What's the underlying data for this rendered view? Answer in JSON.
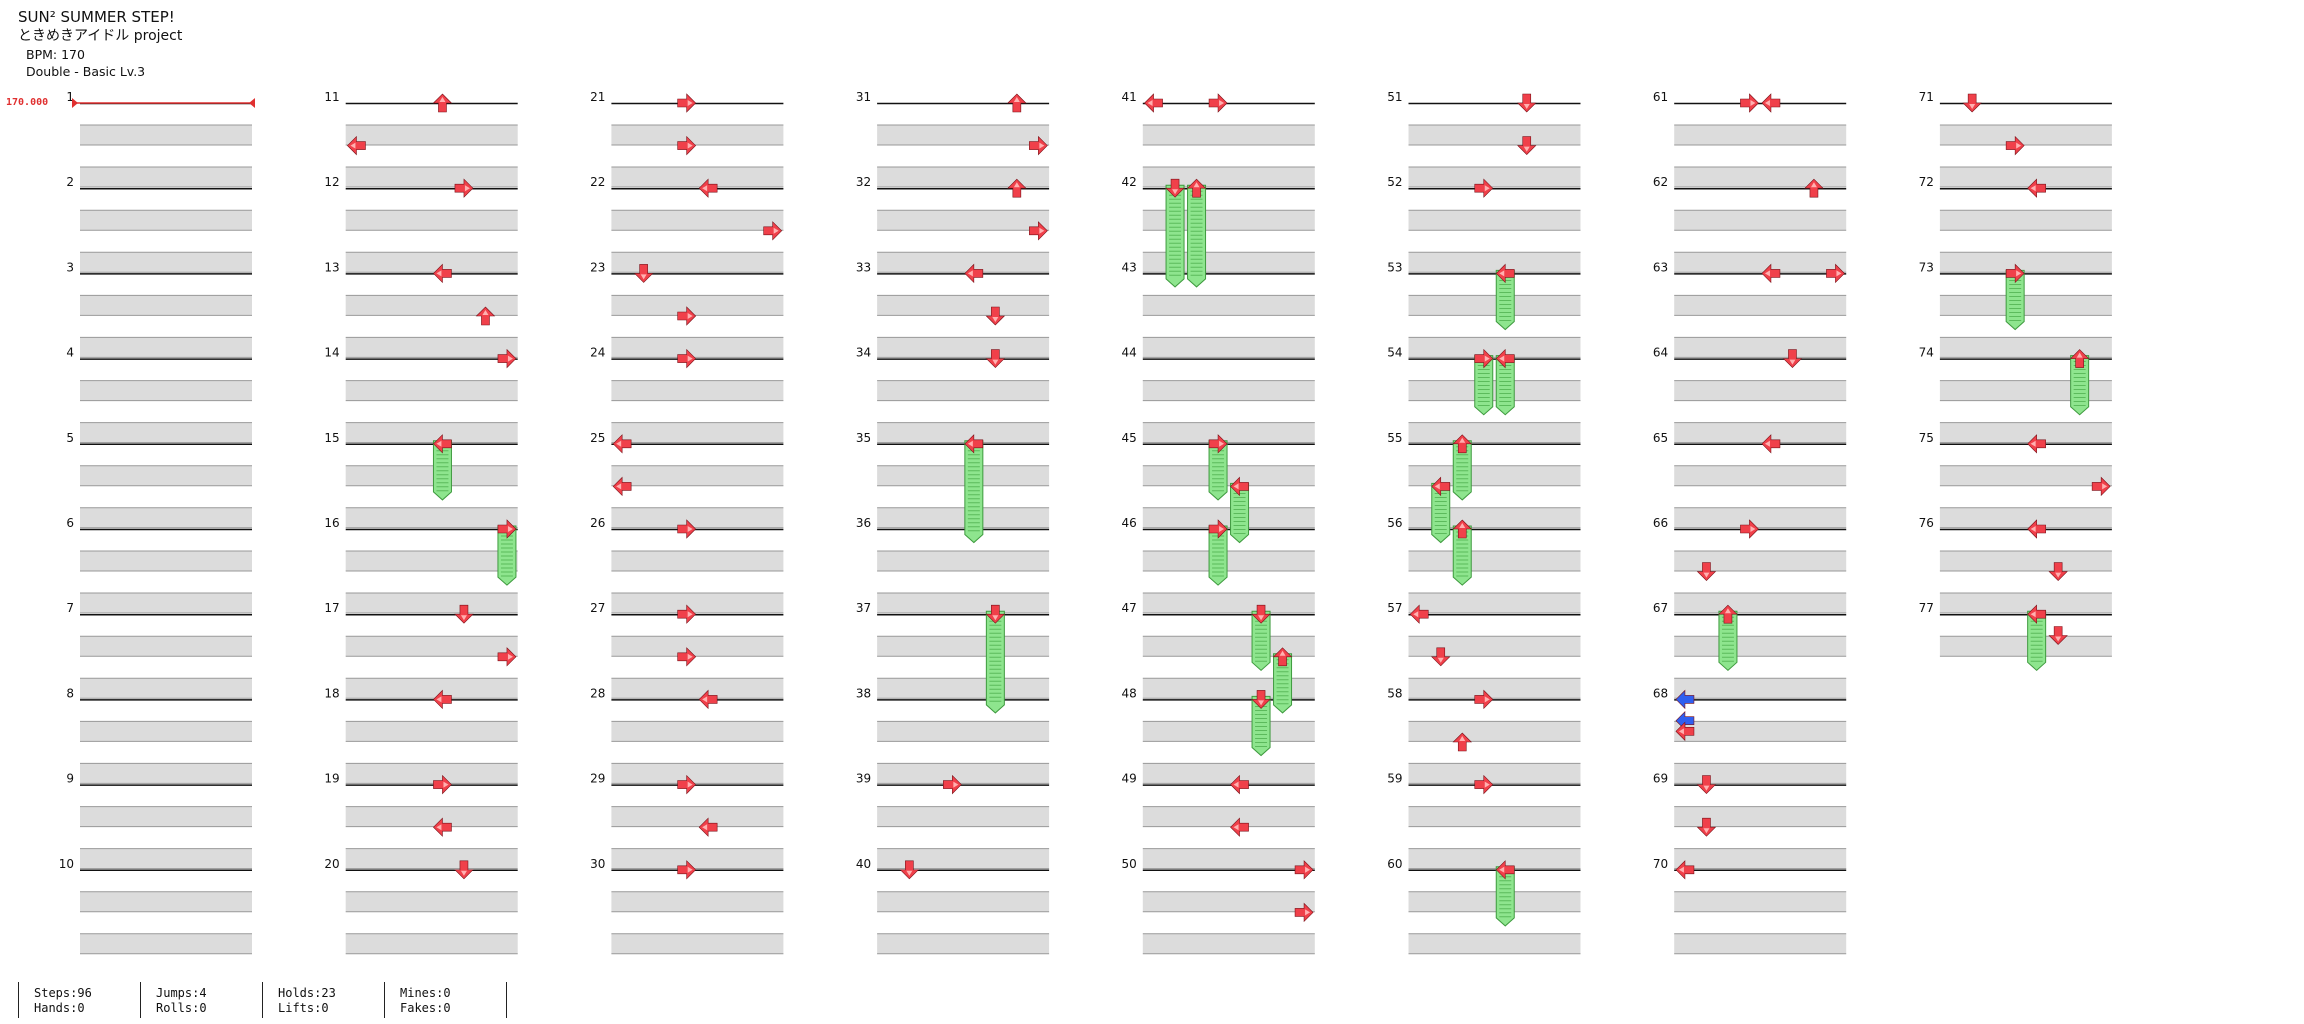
{
  "song": {
    "title": "SUN² SUMMER STEP!",
    "artist": "ときめきアイドル project",
    "bpm": "BPM: 170",
    "chart": "Double - Basic  Lv.3"
  },
  "bpm_marker": "170.000",
  "colors": {
    "arrow": "#f0404a",
    "arrow_alt": "#2f5ff0",
    "hold": "#8ee58e",
    "stripe": "#dcdcdc",
    "line": "#111111",
    "bpm": "#e03030"
  },
  "measures": [
    "1",
    "2",
    "3",
    "4",
    "5",
    "6",
    "7",
    "8",
    "9",
    "10",
    "11",
    "12",
    "13",
    "14",
    "15",
    "16",
    "17",
    "18",
    "19",
    "20",
    "21",
    "22",
    "23",
    "24",
    "25",
    "26",
    "27",
    "28",
    "29",
    "30",
    "31",
    "32",
    "33",
    "34",
    "35",
    "36",
    "37",
    "38",
    "39",
    "40",
    "41",
    "42",
    "43",
    "44",
    "45",
    "46",
    "47",
    "48",
    "49",
    "50",
    "51",
    "52",
    "53",
    "54",
    "55",
    "56",
    "57",
    "58",
    "59",
    "60",
    "61",
    "62",
    "63",
    "64",
    "65",
    "66",
    "67",
    "68",
    "69",
    "70",
    "71",
    "72",
    "73",
    "74",
    "75",
    "76",
    "77"
  ],
  "notes": [
    [
      10,
      0.0,
      4,
      "U"
    ],
    [
      10,
      0.5,
      0,
      "L"
    ],
    [
      11,
      0.0,
      5,
      "R"
    ],
    [
      12,
      0.0,
      4,
      "L"
    ],
    [
      12,
      0.5,
      6,
      "U"
    ],
    [
      13,
      0.0,
      7,
      "R"
    ],
    [
      14,
      0.0,
      4,
      "L",
      0.6
    ],
    [
      15,
      0.0,
      7,
      "R",
      0.6
    ],
    [
      16,
      0.0,
      5,
      "D"
    ],
    [
      16,
      0.5,
      7,
      "R"
    ],
    [
      17,
      0.0,
      4,
      "L"
    ],
    [
      18,
      0.0,
      4,
      "R"
    ],
    [
      18,
      0.5,
      4,
      "L"
    ],
    [
      19,
      0.0,
      5,
      "D"
    ],
    [
      20,
      0.0,
      3,
      "R"
    ],
    [
      20,
      0.5,
      3,
      "R"
    ],
    [
      21,
      0.0,
      4,
      "L"
    ],
    [
      21,
      0.5,
      7,
      "R"
    ],
    [
      22,
      0.0,
      1,
      "D"
    ],
    [
      22,
      0.5,
      3,
      "R"
    ],
    [
      23,
      0.0,
      3,
      "R"
    ],
    [
      24,
      0.0,
      0,
      "L"
    ],
    [
      24,
      0.5,
      0,
      "L"
    ],
    [
      25,
      0.0,
      3,
      "R"
    ],
    [
      26,
      0.0,
      3,
      "R"
    ],
    [
      26,
      0.5,
      3,
      "R"
    ],
    [
      27,
      0.0,
      4,
      "L"
    ],
    [
      28,
      0.0,
      3,
      "R"
    ],
    [
      28,
      0.5,
      4,
      "L"
    ],
    [
      29,
      0.0,
      3,
      "R"
    ],
    [
      30,
      0.0,
      6,
      "U"
    ],
    [
      30,
      0.5,
      7,
      "R"
    ],
    [
      31,
      0.0,
      6,
      "U"
    ],
    [
      31,
      0.5,
      7,
      "R"
    ],
    [
      32,
      0.0,
      4,
      "L"
    ],
    [
      32,
      0.5,
      5,
      "D"
    ],
    [
      33,
      0.0,
      5,
      "D"
    ],
    [
      34,
      0.0,
      4,
      "L",
      1.1
    ],
    [
      36,
      0.0,
      5,
      "D",
      1.1
    ],
    [
      38,
      0.0,
      3,
      "R"
    ],
    [
      39,
      0.0,
      1,
      "D"
    ],
    [
      40,
      0.0,
      0,
      "L"
    ],
    [
      40,
      0.0,
      3,
      "R"
    ],
    [
      41,
      0.0,
      1,
      "D",
      1.1
    ],
    [
      41,
      0.0,
      2,
      "U",
      1.1
    ],
    [
      44,
      0.0,
      3,
      "R",
      0.6
    ],
    [
      44,
      0.5,
      4,
      "L",
      0.6
    ],
    [
      45,
      0.0,
      3,
      "R",
      0.6
    ],
    [
      46,
      0.0,
      5,
      "D",
      0.6
    ],
    [
      46,
      0.5,
      6,
      "U",
      0.6
    ],
    [
      47,
      0.0,
      5,
      "D",
      0.6
    ],
    [
      48,
      0.0,
      4,
      "L"
    ],
    [
      48,
      0.5,
      4,
      "L"
    ],
    [
      49,
      0.0,
      7,
      "R"
    ],
    [
      49,
      0.5,
      7,
      "R"
    ],
    [
      50,
      0.0,
      5,
      "D"
    ],
    [
      50,
      0.5,
      5,
      "D"
    ],
    [
      51,
      0.0,
      3,
      "R"
    ],
    [
      52,
      0.0,
      4,
      "L",
      0.6
    ],
    [
      53,
      0.0,
      3,
      "R",
      0.6
    ],
    [
      53,
      0.0,
      4,
      "L",
      0.6
    ],
    [
      54,
      0.0,
      2,
      "U",
      0.6
    ],
    [
      54,
      0.5,
      1,
      "L",
      0.6
    ],
    [
      55,
      0.0,
      2,
      "U",
      0.6
    ],
    [
      56,
      0.0,
      0,
      "L"
    ],
    [
      56,
      0.5,
      1,
      "D"
    ],
    [
      57,
      0.0,
      3,
      "R"
    ],
    [
      57,
      0.5,
      2,
      "U"
    ],
    [
      58,
      0.0,
      3,
      "R"
    ],
    [
      59,
      0.0,
      4,
      "L",
      0.6
    ],
    [
      60,
      0.0,
      3,
      "R"
    ],
    [
      60,
      0.0,
      4,
      "L"
    ],
    [
      61,
      0.0,
      6,
      "U"
    ],
    [
      62,
      0.0,
      4,
      "L"
    ],
    [
      62,
      0.0,
      7,
      "R"
    ],
    [
      63,
      0.0,
      5,
      "D"
    ],
    [
      64,
      0.0,
      4,
      "L"
    ],
    [
      65,
      0.0,
      3,
      "R"
    ],
    [
      65,
      0.5,
      1,
      "D"
    ],
    [
      66,
      0.0,
      2,
      "U",
      0.6
    ],
    [
      67,
      0.0,
      0,
      "Lb"
    ],
    [
      67,
      0.25,
      0,
      "Lb"
    ],
    [
      67,
      0.375,
      0,
      "L"
    ],
    [
      68,
      0.0,
      1,
      "D"
    ],
    [
      68,
      0.5,
      1,
      "D"
    ],
    [
      69,
      0.0,
      0,
      "L"
    ],
    [
      70,
      0.0,
      1,
      "D"
    ],
    [
      70,
      0.5,
      3,
      "R"
    ],
    [
      71,
      0.0,
      4,
      "L"
    ],
    [
      72,
      0.0,
      3,
      "R",
      0.6
    ],
    [
      73,
      0.0,
      6,
      "U",
      0.6
    ],
    [
      74,
      0.0,
      4,
      "L"
    ],
    [
      74,
      0.5,
      7,
      "R"
    ],
    [
      75,
      0.0,
      4,
      "L"
    ],
    [
      75,
      0.5,
      5,
      "D"
    ],
    [
      76,
      0.0,
      4,
      "L",
      0.6
    ],
    [
      76,
      0.25,
      5,
      "D"
    ]
  ],
  "stats": [
    [
      "Steps:96",
      "Hands:0"
    ],
    [
      "Jumps:4",
      "Rolls:0"
    ],
    [
      "Holds:23",
      "Lifts:0"
    ],
    [
      "Mines:0",
      "Fakes:0"
    ]
  ]
}
